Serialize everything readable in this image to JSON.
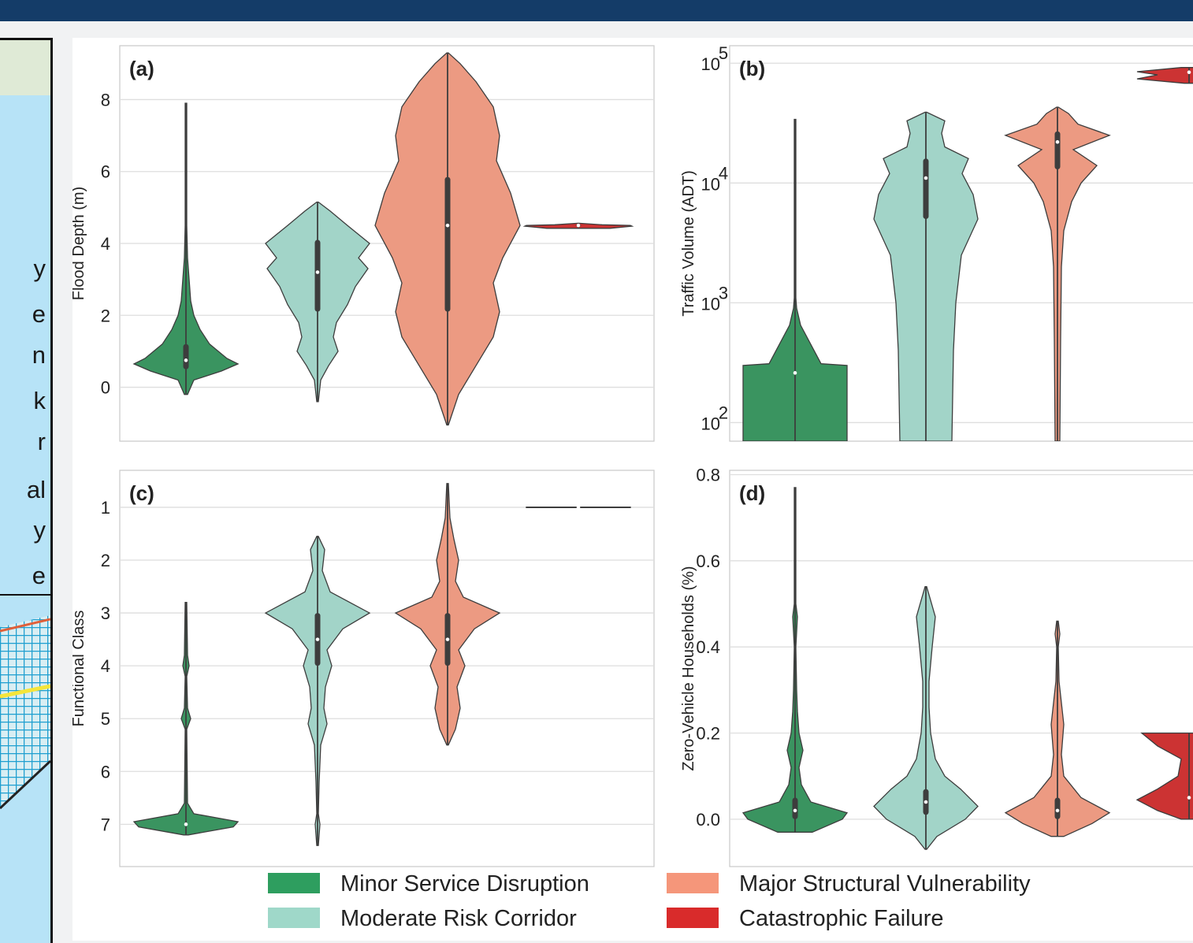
{
  "left_fragments": [
    "y",
    "e",
    "n",
    "k",
    "r",
    "al",
    "y",
    "e"
  ],
  "chart_data": [
    {
      "type": "violin",
      "panel": "(a)",
      "xlabel": "",
      "ylabel": "Flood Depth (m)",
      "ylim": [
        -1.5,
        9.5
      ],
      "yticks": [
        0,
        2,
        4,
        6,
        8
      ],
      "grid": true,
      "series": [
        {
          "name": "Minor Service Disruption",
          "color": "#3a9460",
          "min": -0.2,
          "max": 7.9,
          "q1": 0.5,
          "median": 0.75,
          "q3": 1.2,
          "profile": [
            [
              -0.2,
              2
            ],
            [
              0.2,
              10
            ],
            [
              0.45,
              45
            ],
            [
              0.65,
              66
            ],
            [
              0.8,
              52
            ],
            [
              1.2,
              30
            ],
            [
              1.6,
              18
            ],
            [
              2.0,
              10
            ],
            [
              2.4,
              6
            ],
            [
              3.0,
              4
            ],
            [
              3.6,
              2
            ],
            [
              4.5,
              1
            ],
            [
              7.9,
              1
            ]
          ]
        },
        {
          "name": "Moderate Risk Corridor",
          "color": "#a2d4c8",
          "min": -0.4,
          "max": 5.15,
          "q1": 2.1,
          "median": 3.2,
          "q3": 4.1,
          "profile": [
            [
              -0.4,
              1
            ],
            [
              0.2,
              4
            ],
            [
              0.6,
              14
            ],
            [
              1.0,
              26
            ],
            [
              1.4,
              20
            ],
            [
              1.8,
              24
            ],
            [
              2.3,
              38
            ],
            [
              2.8,
              48
            ],
            [
              3.3,
              64
            ],
            [
              3.6,
              52
            ],
            [
              4.0,
              66
            ],
            [
              4.5,
              38
            ],
            [
              4.9,
              16
            ],
            [
              5.15,
              1
            ]
          ]
        },
        {
          "name": "Major Structural Vulnerability",
          "color": "#ec9a82",
          "min": -1.05,
          "max": 9.3,
          "q1": 2.1,
          "median": 4.5,
          "q3": 5.85,
          "profile": [
            [
              -1.05,
              1
            ],
            [
              -0.2,
              14
            ],
            [
              0.6,
              36
            ],
            [
              1.4,
              58
            ],
            [
              2.1,
              66
            ],
            [
              2.9,
              58
            ],
            [
              3.6,
              70
            ],
            [
              4.5,
              92
            ],
            [
              5.4,
              80
            ],
            [
              6.3,
              62
            ],
            [
              7.0,
              66
            ],
            [
              7.8,
              58
            ],
            [
              8.5,
              36
            ],
            [
              9.0,
              16
            ],
            [
              9.3,
              1
            ]
          ]
        },
        {
          "name": "Catastrophic Failure",
          "color": "#cc3333",
          "min": 4.42,
          "max": 4.56,
          "q1": 4.48,
          "median": 4.5,
          "q3": 4.52,
          "profile": [
            [
              4.42,
              40
            ],
            [
              4.48,
              68
            ],
            [
              4.5,
              66
            ],
            [
              4.52,
              30
            ],
            [
              4.56,
              1
            ]
          ]
        }
      ]
    },
    {
      "type": "violin",
      "panel": "(b)",
      "xlabel": "",
      "ylabel": "Traffic Volume (ADT)",
      "yscale": "log",
      "ylim": [
        70,
        140000
      ],
      "yticks": [
        100,
        1000,
        10000,
        100000
      ],
      "ytick_labels": [
        "10^2",
        "10^3",
        "10^4",
        "10^5"
      ],
      "grid": true,
      "series": [
        {
          "name": "Minor Service Disruption",
          "color": "#3a9460",
          "min": 70,
          "max": 34000,
          "median": 260,
          "profile": [
            [
              70,
              66
            ],
            [
              300,
              66
            ],
            [
              310,
              33
            ],
            [
              650,
              7
            ],
            [
              900,
              2
            ],
            [
              1100,
              1
            ],
            [
              5000,
              1
            ],
            [
              34000,
              1
            ]
          ]
        },
        {
          "name": "Moderate Risk Corridor",
          "color": "#a2d4c8",
          "min": 70,
          "max": 39000,
          "q1": 5000,
          "median": 11000,
          "q3": 16000,
          "profile": [
            [
              70,
              33
            ],
            [
              400,
              35
            ],
            [
              1000,
              38
            ],
            [
              2500,
              45
            ],
            [
              5000,
              66
            ],
            [
              8000,
              60
            ],
            [
              12000,
              46
            ],
            [
              16000,
              54
            ],
            [
              20000,
              24
            ],
            [
              26000,
              20
            ],
            [
              33000,
              24
            ],
            [
              39000,
              1
            ]
          ]
        },
        {
          "name": "Major Structural Vulnerability",
          "color": "#ec9a82",
          "min": 70,
          "max": 43000,
          "q1": 13000,
          "median": 22000,
          "q3": 27000,
          "profile": [
            [
              70,
              3
            ],
            [
              500,
              4
            ],
            [
              2000,
              5
            ],
            [
              4000,
              8
            ],
            [
              7000,
              18
            ],
            [
              10000,
              30
            ],
            [
              14000,
              50
            ],
            [
              19000,
              20
            ],
            [
              25000,
              66
            ],
            [
              31000,
              26
            ],
            [
              38000,
              14
            ],
            [
              43000,
              1
            ]
          ]
        },
        {
          "name": "Catastrophic Failure",
          "color": "#cc3333",
          "min": 68000,
          "max": 92000,
          "median": 84000,
          "profile": [
            [
              68000,
              6
            ],
            [
              74000,
              66
            ],
            [
              80000,
              40
            ],
            [
              85000,
              66
            ],
            [
              92000,
              10
            ]
          ]
        }
      ]
    },
    {
      "type": "violin",
      "panel": "(c)",
      "xlabel": "",
      "ylabel": "Functional Class",
      "ylim": [
        0.3,
        7.8
      ],
      "yinverted": true,
      "yticks": [
        1,
        2,
        3,
        4,
        5,
        6,
        7
      ],
      "grid": true,
      "series": [
        {
          "name": "Minor Service Disruption",
          "color": "#3a9460",
          "min": 2.8,
          "max": 7.2,
          "median": 7.0,
          "profile": [
            [
              2.8,
              1
            ],
            [
              3.8,
              2
            ],
            [
              4.0,
              4
            ],
            [
              4.2,
              1
            ],
            [
              4.8,
              2
            ],
            [
              5.0,
              6
            ],
            [
              5.2,
              1
            ],
            [
              6.6,
              2
            ],
            [
              6.8,
              10
            ],
            [
              6.95,
              66
            ],
            [
              7.05,
              60
            ],
            [
              7.2,
              3
            ]
          ]
        },
        {
          "name": "Moderate Risk Corridor",
          "color": "#a2d4c8",
          "min": 1.55,
          "max": 7.4,
          "q1": 3.0,
          "median": 3.5,
          "q3": 4.0,
          "profile": [
            [
              1.55,
              1
            ],
            [
              1.8,
              9
            ],
            [
              2.2,
              6
            ],
            [
              2.6,
              16
            ],
            [
              3.0,
              66
            ],
            [
              3.3,
              32
            ],
            [
              3.7,
              12
            ],
            [
              4.0,
              18
            ],
            [
              4.4,
              10
            ],
            [
              4.8,
              8
            ],
            [
              5.1,
              12
            ],
            [
              5.5,
              4
            ],
            [
              6.2,
              2
            ],
            [
              6.8,
              1
            ],
            [
              7.0,
              3
            ],
            [
              7.4,
              1
            ]
          ]
        },
        {
          "name": "Major Structural Vulnerability",
          "color": "#ec9a82",
          "min": 0.55,
          "max": 5.5,
          "q1": 3.0,
          "median": 3.5,
          "q3": 4.0,
          "profile": [
            [
              0.55,
              1
            ],
            [
              1.2,
              3
            ],
            [
              1.6,
              8
            ],
            [
              2.0,
              14
            ],
            [
              2.4,
              10
            ],
            [
              2.7,
              20
            ],
            [
              3.0,
              66
            ],
            [
              3.3,
              34
            ],
            [
              3.7,
              14
            ],
            [
              4.0,
              22
            ],
            [
              4.4,
              12
            ],
            [
              4.8,
              16
            ],
            [
              5.2,
              10
            ],
            [
              5.5,
              1
            ]
          ]
        },
        {
          "name": "Catastrophic Failure",
          "color": "#cc3333",
          "min": 1.0,
          "max": 1.0,
          "median": 1.0,
          "profile": [
            [
              0.995,
              66
            ],
            [
              1.005,
              66
            ]
          ]
        }
      ]
    },
    {
      "type": "violin",
      "panel": "(d)",
      "xlabel": "",
      "ylabel": "Zero-Vehicle Households (%)",
      "ylim": [
        -0.11,
        0.81
      ],
      "yticks": [
        0.0,
        0.2,
        0.4,
        0.6,
        0.8
      ],
      "grid": true,
      "series": [
        {
          "name": "Minor Service Disruption",
          "color": "#3a9460",
          "min": -0.03,
          "max": 0.77,
          "q1": 0.0,
          "median": 0.02,
          "q3": 0.05,
          "profile": [
            [
              -0.03,
              22
            ],
            [
              0.0,
              60
            ],
            [
              0.015,
              66
            ],
            [
              0.04,
              20
            ],
            [
              0.08,
              8
            ],
            [
              0.12,
              5
            ],
            [
              0.16,
              10
            ],
            [
              0.2,
              5
            ],
            [
              0.25,
              3
            ],
            [
              0.3,
              2
            ],
            [
              0.4,
              1
            ],
            [
              0.47,
              3
            ],
            [
              0.5,
              1
            ],
            [
              0.77,
              1
            ]
          ]
        },
        {
          "name": "Moderate Risk Corridor",
          "color": "#a2d4c8",
          "min": -0.07,
          "max": 0.54,
          "q1": 0.01,
          "median": 0.04,
          "q3": 0.07,
          "profile": [
            [
              -0.07,
              1
            ],
            [
              -0.04,
              14
            ],
            [
              0.0,
              50
            ],
            [
              0.03,
              66
            ],
            [
              0.07,
              44
            ],
            [
              0.1,
              24
            ],
            [
              0.14,
              12
            ],
            [
              0.2,
              6
            ],
            [
              0.26,
              4
            ],
            [
              0.32,
              4
            ],
            [
              0.4,
              8
            ],
            [
              0.47,
              12
            ],
            [
              0.54,
              1
            ]
          ]
        },
        {
          "name": "Major Structural Vulnerability",
          "color": "#ec9a82",
          "min": -0.04,
          "max": 0.46,
          "q1": 0.0,
          "median": 0.02,
          "q3": 0.05,
          "profile": [
            [
              -0.04,
              8
            ],
            [
              -0.01,
              44
            ],
            [
              0.015,
              66
            ],
            [
              0.05,
              30
            ],
            [
              0.1,
              8
            ],
            [
              0.15,
              5
            ],
            [
              0.22,
              8
            ],
            [
              0.27,
              5
            ],
            [
              0.32,
              2
            ],
            [
              0.4,
              1
            ],
            [
              0.43,
              3
            ],
            [
              0.46,
              1
            ]
          ]
        },
        {
          "name": "Catastrophic Failure",
          "color": "#cc3333",
          "min": 0.0,
          "max": 0.2,
          "median": 0.05,
          "profile": [
            [
              0.0,
              10
            ],
            [
              0.02,
              40
            ],
            [
              0.045,
              66
            ],
            [
              0.07,
              40
            ],
            [
              0.1,
              14
            ],
            [
              0.14,
              10
            ],
            [
              0.17,
              40
            ],
            [
              0.2,
              60
            ]
          ]
        }
      ]
    }
  ],
  "legend": [
    {
      "label": "Minor Service Disruption",
      "color": "#2e9e5f"
    },
    {
      "label": "Moderate Risk Corridor",
      "color": "#9fd8c9"
    },
    {
      "label": "Major Structural Vulnerability",
      "color": "#f5967a"
    },
    {
      "label": "Catastrophic Failure",
      "color": "#d92b2b"
    }
  ]
}
